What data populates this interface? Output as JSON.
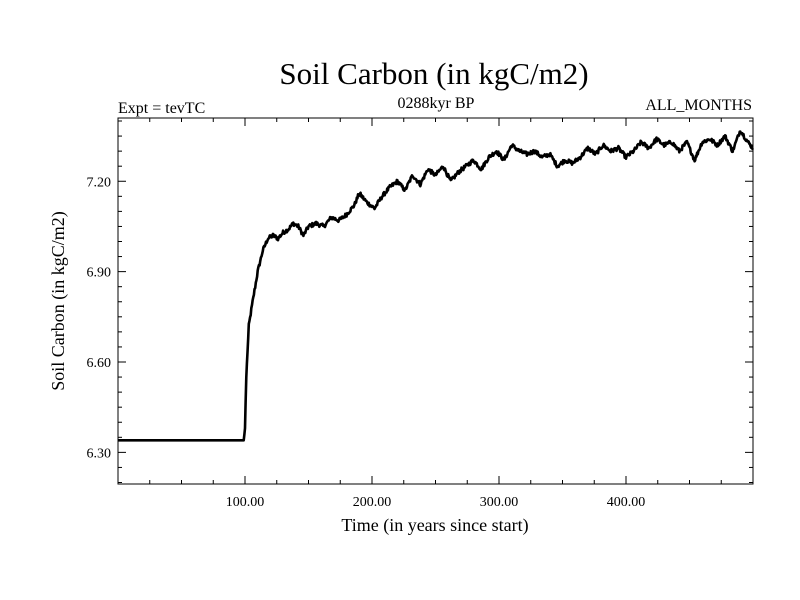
{
  "chart_data": {
    "type": "line",
    "title": "Soil Carbon (in kgC/m2)",
    "subtitle_left": "Expt = tevTC",
    "subtitle_center": "0288kyr BP",
    "subtitle_right": "ALL_MONTHS",
    "xlabel": "Time (in years since start)",
    "ylabel": "Soil Carbon (in kgC/m2)",
    "xlim": [
      0,
      500
    ],
    "ylim": [
      6.195,
      7.41
    ],
    "xticks": [
      100,
      200,
      300,
      400
    ],
    "xtick_labels": [
      "100.00",
      "200.00",
      "300.00",
      "400.00"
    ],
    "yticks": [
      6.3,
      6.6,
      6.9,
      7.2
    ],
    "ytick_labels": [
      "6.30",
      "6.60",
      "6.90",
      "7.20"
    ],
    "series": [
      {
        "name": "Soil Carbon",
        "color": "#000000",
        "x": [
          0,
          20,
          40,
          60,
          80,
          99,
          100,
          101,
          103,
          106,
          110,
          114,
          118,
          122,
          126,
          130,
          134,
          138,
          142,
          146,
          150,
          156,
          162,
          168,
          174,
          180,
          186,
          190,
          196,
          202,
          208,
          214,
          220,
          226,
          232,
          238,
          244,
          250,
          256,
          262,
          268,
          274,
          280,
          286,
          292,
          298,
          304,
          310,
          316,
          322,
          328,
          334,
          340,
          346,
          352,
          358,
          364,
          370,
          376,
          382,
          388,
          394,
          400,
          406,
          412,
          418,
          424,
          430,
          436,
          442,
          448,
          454,
          460,
          466,
          472,
          478,
          484,
          490,
          496,
          500
        ],
        "values": [
          6.34,
          6.34,
          6.34,
          6.34,
          6.34,
          6.34,
          6.38,
          6.55,
          6.72,
          6.8,
          6.9,
          6.97,
          7.01,
          7.02,
          7.01,
          7.03,
          7.04,
          7.06,
          7.05,
          7.02,
          7.05,
          7.06,
          7.05,
          7.08,
          7.07,
          7.09,
          7.12,
          7.16,
          7.13,
          7.11,
          7.15,
          7.18,
          7.2,
          7.17,
          7.22,
          7.19,
          7.24,
          7.22,
          7.25,
          7.2,
          7.23,
          7.25,
          7.27,
          7.24,
          7.28,
          7.3,
          7.27,
          7.32,
          7.3,
          7.29,
          7.3,
          7.28,
          7.29,
          7.25,
          7.27,
          7.26,
          7.28,
          7.31,
          7.29,
          7.32,
          7.3,
          7.31,
          7.28,
          7.3,
          7.33,
          7.31,
          7.34,
          7.32,
          7.33,
          7.3,
          7.33,
          7.27,
          7.33,
          7.34,
          7.32,
          7.35,
          7.3,
          7.37,
          7.33,
          7.31
        ]
      }
    ]
  }
}
